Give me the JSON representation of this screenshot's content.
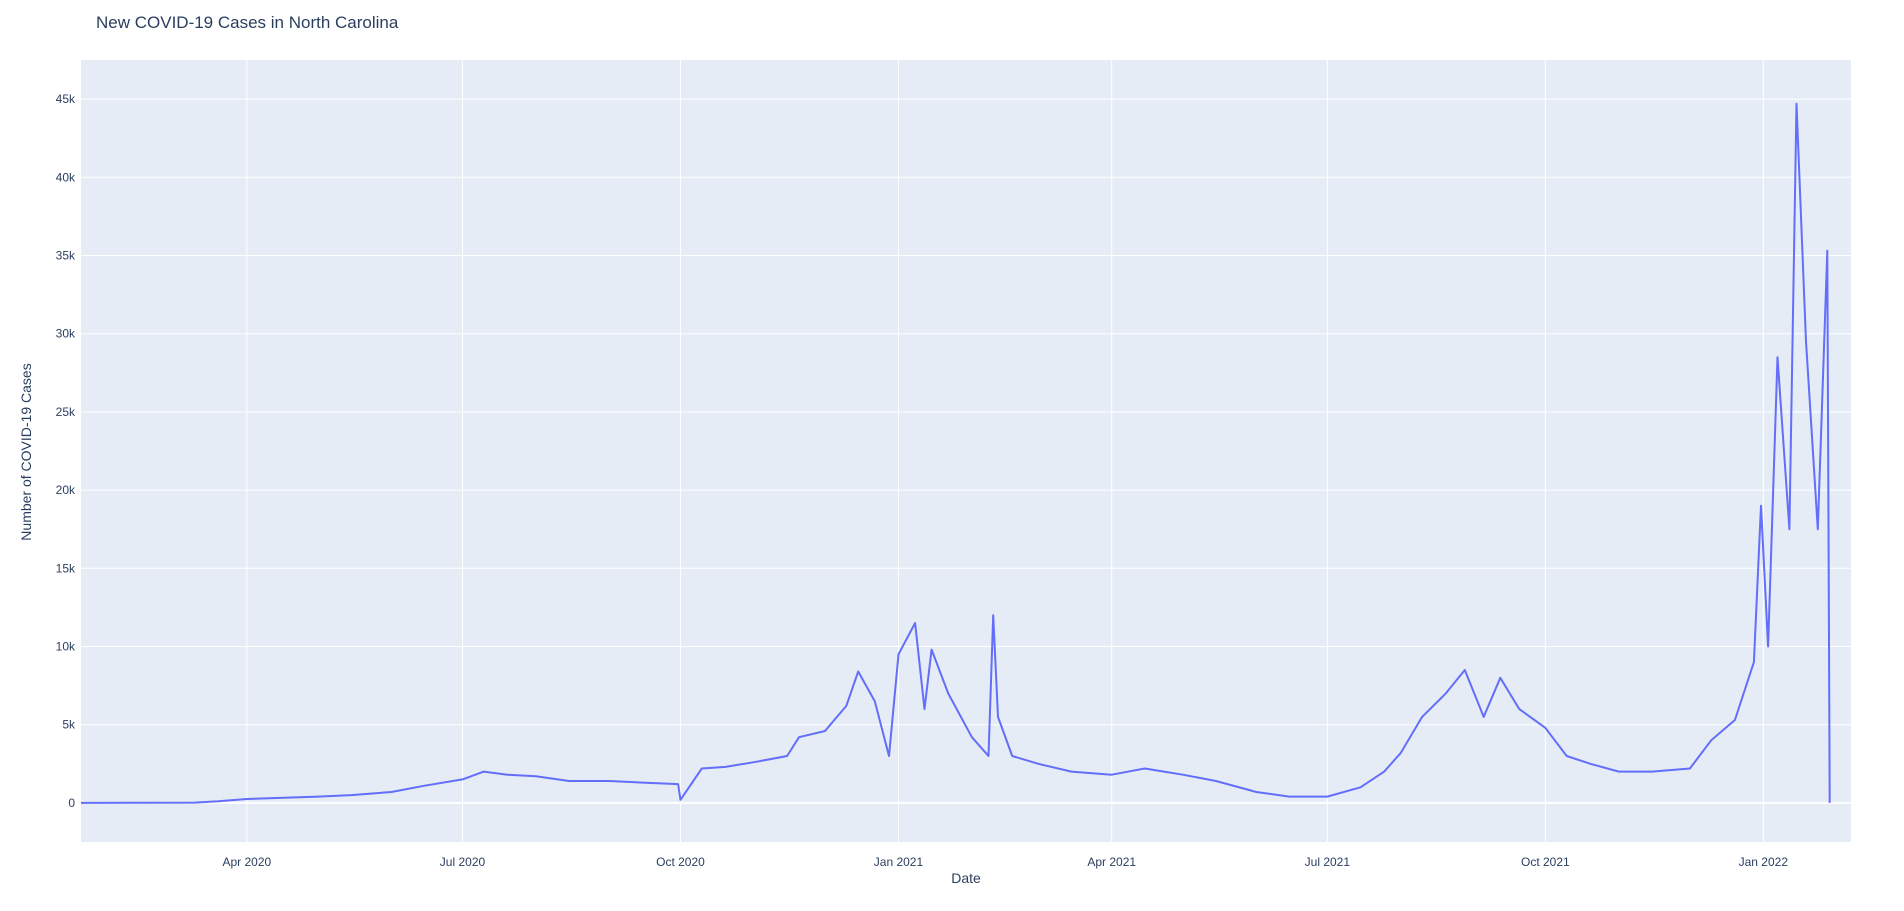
{
  "chart_data": {
    "type": "line",
    "title": "New COVID-19 Cases in North Carolina",
    "xlabel": "Date",
    "ylabel": "Number of COVID-19 Cases",
    "xlim": [
      "2020-01-22",
      "2022-02-07"
    ],
    "ylim": [
      -2500,
      47500
    ],
    "grid": true,
    "legend": "none",
    "colors": {
      "line": "#636efa",
      "plot_bg": "#e5ecf6",
      "grid": "#ffffff",
      "text": "#2a3f5f"
    },
    "x_ticks": [
      {
        "date": "2020-04-01",
        "label": "Apr 2020"
      },
      {
        "date": "2020-07-01",
        "label": "Jul 2020"
      },
      {
        "date": "2020-10-01",
        "label": "Oct 2020"
      },
      {
        "date": "2021-01-01",
        "label": "Jan 2021"
      },
      {
        "date": "2021-04-01",
        "label": "Apr 2021"
      },
      {
        "date": "2021-07-01",
        "label": "Jul 2021"
      },
      {
        "date": "2021-10-01",
        "label": "Oct 2021"
      },
      {
        "date": "2022-01-01",
        "label": "Jan 2022"
      }
    ],
    "y_ticks": [
      {
        "value": 0,
        "label": "0"
      },
      {
        "value": 5000,
        "label": "5k"
      },
      {
        "value": 10000,
        "label": "10k"
      },
      {
        "value": 15000,
        "label": "15k"
      },
      {
        "value": 20000,
        "label": "20k"
      },
      {
        "value": 25000,
        "label": "25k"
      },
      {
        "value": 30000,
        "label": "30k"
      },
      {
        "value": 35000,
        "label": "35k"
      },
      {
        "value": 40000,
        "label": "40k"
      },
      {
        "value": 45000,
        "label": "45k"
      }
    ],
    "series": [
      {
        "points": [
          [
            "2020-01-22",
            0
          ],
          [
            "2020-03-10",
            20
          ],
          [
            "2020-03-20",
            100
          ],
          [
            "2020-04-01",
            250
          ],
          [
            "2020-04-15",
            320
          ],
          [
            "2020-05-01",
            400
          ],
          [
            "2020-05-15",
            500
          ],
          [
            "2020-06-01",
            700
          ],
          [
            "2020-06-15",
            1100
          ],
          [
            "2020-07-01",
            1500
          ],
          [
            "2020-07-10",
            2000
          ],
          [
            "2020-07-20",
            1800
          ],
          [
            "2020-08-01",
            1700
          ],
          [
            "2020-08-15",
            1400
          ],
          [
            "2020-09-01",
            1400
          ],
          [
            "2020-09-15",
            1300
          ],
          [
            "2020-09-30",
            1200
          ],
          [
            "2020-10-01",
            200
          ],
          [
            "2020-10-10",
            2200
          ],
          [
            "2020-10-20",
            2300
          ],
          [
            "2020-11-01",
            2600
          ],
          [
            "2020-11-15",
            3000
          ],
          [
            "2020-11-20",
            4200
          ],
          [
            "2020-12-01",
            4600
          ],
          [
            "2020-12-10",
            6200
          ],
          [
            "2020-12-15",
            8400
          ],
          [
            "2020-12-22",
            6500
          ],
          [
            "2020-12-28",
            3000
          ],
          [
            "2021-01-01",
            9500
          ],
          [
            "2021-01-08",
            11500
          ],
          [
            "2021-01-12",
            6000
          ],
          [
            "2021-01-15",
            9800
          ],
          [
            "2021-01-22",
            7000
          ],
          [
            "2021-02-01",
            4200
          ],
          [
            "2021-02-08",
            3000
          ],
          [
            "2021-02-10",
            12000
          ],
          [
            "2021-02-12",
            5500
          ],
          [
            "2021-02-18",
            3000
          ],
          [
            "2021-03-01",
            2500
          ],
          [
            "2021-03-15",
            2000
          ],
          [
            "2021-04-01",
            1800
          ],
          [
            "2021-04-15",
            2200
          ],
          [
            "2021-05-01",
            1800
          ],
          [
            "2021-05-15",
            1400
          ],
          [
            "2021-06-01",
            700
          ],
          [
            "2021-06-15",
            400
          ],
          [
            "2021-07-01",
            400
          ],
          [
            "2021-07-15",
            1000
          ],
          [
            "2021-07-25",
            2000
          ],
          [
            "2021-08-01",
            3200
          ],
          [
            "2021-08-10",
            5500
          ],
          [
            "2021-08-20",
            7000
          ],
          [
            "2021-08-28",
            8500
          ],
          [
            "2021-09-05",
            5500
          ],
          [
            "2021-09-12",
            8000
          ],
          [
            "2021-09-20",
            6000
          ],
          [
            "2021-10-01",
            4800
          ],
          [
            "2021-10-10",
            3000
          ],
          [
            "2021-10-20",
            2500
          ],
          [
            "2021-11-01",
            2000
          ],
          [
            "2021-11-15",
            2000
          ],
          [
            "2021-12-01",
            2200
          ],
          [
            "2021-12-10",
            4000
          ],
          [
            "2021-12-20",
            5300
          ],
          [
            "2021-12-28",
            9000
          ],
          [
            "2021-12-31",
            19000
          ],
          [
            "2022-01-03",
            10000
          ],
          [
            "2022-01-07",
            28500
          ],
          [
            "2022-01-12",
            17500
          ],
          [
            "2022-01-15",
            44700
          ],
          [
            "2022-01-19",
            29500
          ],
          [
            "2022-01-24",
            17500
          ],
          [
            "2022-01-28",
            35300
          ],
          [
            "2022-01-29",
            0
          ]
        ]
      }
    ]
  }
}
